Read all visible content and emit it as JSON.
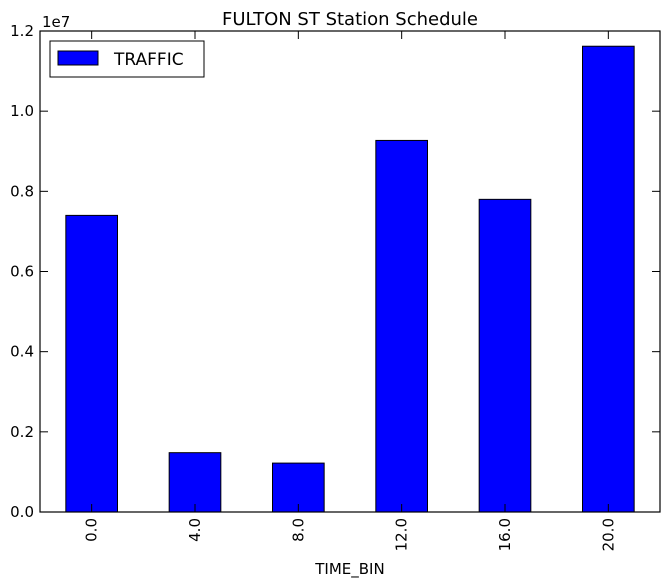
{
  "chart_data": {
    "type": "bar",
    "title": "FULTON ST Station Schedule",
    "xlabel": "TIME_BIN",
    "ylabel": "",
    "categories": [
      "0.0",
      "4.0",
      "8.0",
      "12.0",
      "16.0",
      "20.0"
    ],
    "series": [
      {
        "name": "TRAFFIC",
        "values": [
          7400000,
          1480000,
          1220000,
          9270000,
          7800000,
          11620000
        ]
      }
    ],
    "ylim": [
      0,
      12000000
    ],
    "yticks": [
      0,
      2000000,
      4000000,
      6000000,
      8000000,
      10000000,
      12000000
    ],
    "ytick_labels": [
      "0.0",
      "0.2",
      "0.4",
      "0.6",
      "0.8",
      "1.0",
      "1.2"
    ],
    "y_offset_label": "1e7",
    "legend": "top-left",
    "grid": false,
    "bar_color": "#0000ff",
    "edge_color": "#000000"
  }
}
